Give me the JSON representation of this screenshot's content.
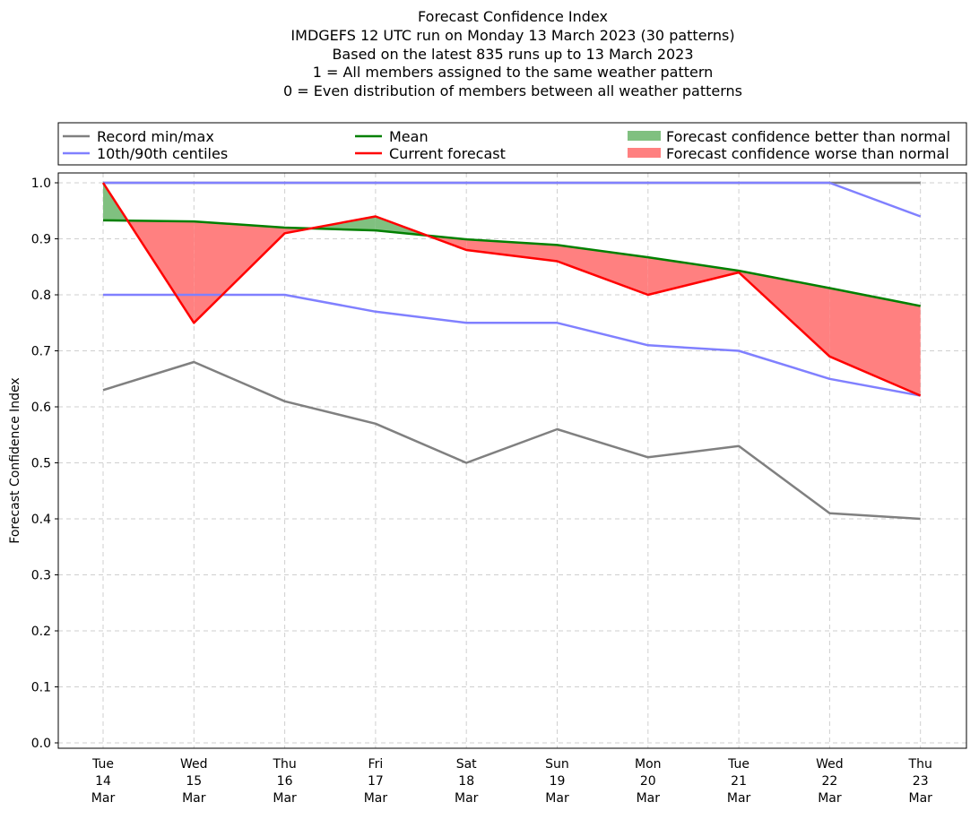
{
  "chart_data": {
    "type": "line",
    "title_lines": [
      "Forecast Confidence Index",
      "IMDGEFS 12 UTC run on Monday 13 March 2023 (30 patterns)",
      "Based on the latest 835 runs up to 13 March 2023",
      "1 = All members assigned to the same weather pattern",
      "0 = Even distribution of members between all weather patterns"
    ],
    "ylabel": "Forecast Confidence Index",
    "xlabel": "",
    "ylim": [
      0,
      1.0
    ],
    "yticks": [
      "0.0",
      "0.1",
      "0.2",
      "0.3",
      "0.4",
      "0.5",
      "0.6",
      "0.7",
      "0.8",
      "0.9",
      "1.0"
    ],
    "grid": true,
    "legend_placement": "top, above plot, 3 columns",
    "categories": [
      [
        "Tue",
        "14",
        "Mar"
      ],
      [
        "Wed",
        "15",
        "Mar"
      ],
      [
        "Thu",
        "16",
        "Mar"
      ],
      [
        "Fri",
        "17",
        "Mar"
      ],
      [
        "Sat",
        "18",
        "Mar"
      ],
      [
        "Sun",
        "19",
        "Mar"
      ],
      [
        "Mon",
        "20",
        "Mar"
      ],
      [
        "Tue",
        "21",
        "Mar"
      ],
      [
        "Wed",
        "22",
        "Mar"
      ],
      [
        "Thu",
        "23",
        "Mar"
      ]
    ],
    "series": [
      {
        "name": "Record min/max",
        "role": "record_min",
        "color": "#808080",
        "values": [
          0.63,
          0.68,
          0.61,
          0.57,
          0.5,
          0.56,
          0.51,
          0.53,
          0.41,
          0.4
        ]
      },
      {
        "name": "Record min/max",
        "role": "record_max",
        "color": "#808080",
        "values": [
          1.0,
          1.0,
          1.0,
          1.0,
          1.0,
          1.0,
          1.0,
          1.0,
          1.0,
          1.0
        ]
      },
      {
        "name": "10th/90th centiles",
        "role": "p10",
        "color": "#8080ff",
        "values": [
          0.8,
          0.8,
          0.8,
          0.77,
          0.75,
          0.75,
          0.71,
          0.7,
          0.65,
          0.62
        ]
      },
      {
        "name": "10th/90th centiles",
        "role": "p90",
        "color": "#8080ff",
        "values": [
          1.0,
          1.0,
          1.0,
          1.0,
          1.0,
          1.0,
          1.0,
          1.0,
          1.0,
          0.94
        ]
      },
      {
        "name": "Mean",
        "role": "mean",
        "color": "#008000",
        "values": [
          0.933,
          0.931,
          0.92,
          0.915,
          0.899,
          0.889,
          0.867,
          0.843,
          0.812,
          0.78
        ]
      },
      {
        "name": "Current forecast",
        "role": "current",
        "color": "#ff0000",
        "values": [
          1.0,
          0.75,
          0.91,
          0.94,
          0.88,
          0.86,
          0.8,
          0.84,
          0.69,
          0.62
        ]
      }
    ],
    "fills": [
      {
        "name": "Forecast confidence better than normal",
        "color": "#80c080"
      },
      {
        "name": "Forecast confidence worse than normal",
        "color": "#ff8080"
      }
    ]
  },
  "legend": {
    "record": "Record min/max",
    "centiles": "10th/90th centiles",
    "mean": "Mean",
    "current": "Current forecast",
    "better": "Forecast confidence better than normal",
    "worse": "Forecast confidence worse than normal"
  }
}
